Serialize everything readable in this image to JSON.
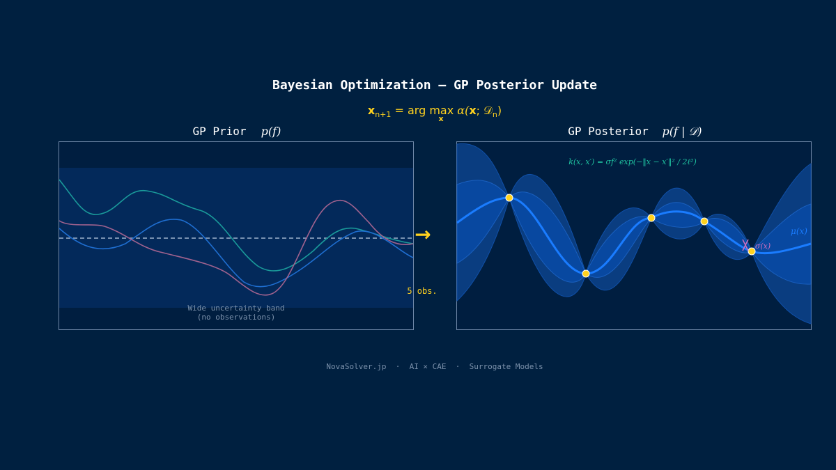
{
  "header": {
    "title": "Bayesian Optimization — GP Posterior Update",
    "formula": [
      "x",
      "n+1",
      " = arg max ",
      "α(",
      "x",
      "; 𝒟",
      "n",
      ")",
      "x"
    ]
  },
  "prior": {
    "title": "GP Prior",
    "math": "p(f)",
    "note": [
      "Wide uncertainty band",
      "(no observations)"
    ]
  },
  "transition": {
    "arrow": "→",
    "label": "5 obs."
  },
  "posterior": {
    "title": "GP Posterior",
    "math": "p(f | 𝒟)",
    "kernel": "k(x, x′) = σf² exp(−‖x − x′‖² / 2ℓ²)",
    "mean_label": "μ(x)",
    "sigma_label": "σ(x)"
  },
  "footer": "NovaSolver.jp  ·  AI × CAE  ·  Surrogate Models"
}
